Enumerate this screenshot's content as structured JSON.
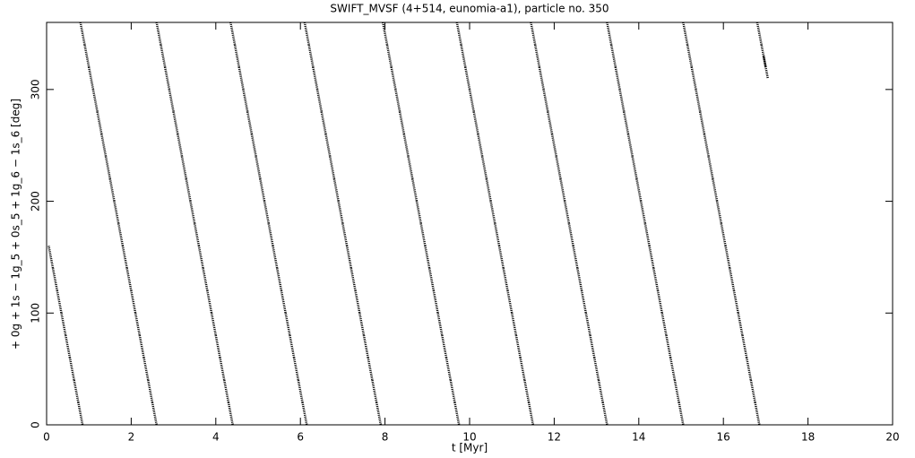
{
  "chart_data": {
    "type": "scatter",
    "title": "SWIFT_MVSF (4+514, eunomia-a1), particle no. 350",
    "x_label": "t [Myr]",
    "y_label": "+ 0g + 1s − 1g_5 + 0s_5 + 1g_6 − 1s_6 [deg]",
    "color": "#000000",
    "xlim": [
      0,
      20
    ],
    "xticks": [
      0,
      2,
      4,
      6,
      8,
      10,
      12,
      14,
      16,
      18,
      20
    ],
    "ylim": [
      0,
      360
    ],
    "yticks": [
      0,
      100,
      200,
      300
    ],
    "x": [
      0.1,
      0.2,
      0.3,
      0.4,
      0.5,
      0.6,
      0.7,
      0.8,
      0.85,
      0.95,
      1.05,
      1.15,
      1.25,
      1.35,
      1.45,
      1.55,
      1.65,
      1.75,
      1.85,
      1.95,
      2.05,
      2.15,
      2.25,
      2.35,
      2.45,
      2.55,
      2.65,
      2.75,
      2.85,
      2.95,
      3.05,
      3.15,
      3.25,
      3.35,
      3.45,
      3.55,
      3.65,
      3.75,
      3.85,
      3.95,
      4.05,
      4.15,
      4.25,
      4.35,
      4.4,
      4.5,
      4.6,
      4.7,
      4.8,
      4.9,
      5.0,
      5.1,
      5.2,
      5.3,
      5.4,
      5.5,
      5.6,
      5.7,
      5.8,
      5.9,
      6.0,
      6.1,
      6.15,
      6.25,
      6.35,
      6.45,
      6.55,
      6.65,
      6.75,
      6.85,
      6.95,
      7.05,
      7.15,
      7.25,
      7.35,
      7.45,
      7.55,
      7.65,
      7.75,
      7.85,
      8.0,
      8.1,
      8.2,
      8.3,
      8.4,
      8.5,
      8.6,
      8.7,
      8.8,
      8.9,
      9.0,
      9.1,
      9.2,
      9.3,
      9.4,
      9.5,
      9.6,
      9.7,
      9.75,
      9.85,
      9.95,
      10.05,
      10.15,
      10.25,
      10.35,
      10.45,
      10.55,
      10.65,
      10.75,
      10.85,
      10.95,
      11.05,
      11.15,
      11.25,
      11.35,
      11.45,
      11.5,
      11.6,
      11.7,
      11.8,
      11.9,
      12.0,
      12.1,
      12.2,
      12.3,
      12.4,
      12.5,
      12.6,
      12.7,
      12.8,
      12.9,
      13.0,
      13.1,
      13.2,
      13.3,
      13.4,
      13.5,
      13.6,
      13.7,
      13.8,
      13.9,
      14.0,
      14.1,
      14.2,
      14.3,
      14.4,
      14.5,
      14.6,
      14.7,
      14.8,
      14.9,
      15.0,
      15.1,
      15.2,
      15.3,
      15.4,
      15.5,
      15.6,
      15.7,
      15.8,
      15.9,
      16.0,
      16.1,
      16.2,
      16.3,
      16.4,
      16.5,
      16.6,
      16.7,
      16.8,
      16.85,
      16.95,
      17.0
    ],
    "values": [
      150,
      130,
      110,
      90,
      70,
      50,
      30,
      10,
      350,
      330,
      310,
      290,
      270,
      250,
      230,
      210,
      190,
      170,
      150,
      130,
      110,
      90,
      70,
      50,
      30,
      10,
      350,
      330,
      310,
      290,
      270,
      250,
      230,
      210,
      190,
      170,
      150,
      130,
      110,
      90,
      70,
      50,
      30,
      10,
      350,
      330,
      310,
      290,
      270,
      250,
      230,
      210,
      190,
      170,
      150,
      130,
      110,
      90,
      70,
      50,
      30,
      10,
      350,
      330,
      310,
      290,
      270,
      250,
      230,
      210,
      190,
      170,
      150,
      130,
      110,
      90,
      70,
      50,
      30,
      10,
      350,
      330,
      310,
      290,
      270,
      250,
      230,
      210,
      190,
      170,
      150,
      130,
      110,
      90,
      70,
      50,
      30,
      10,
      350,
      330,
      310,
      290,
      270,
      250,
      230,
      210,
      190,
      170,
      150,
      130,
      110,
      90,
      70,
      50,
      30,
      10,
      350,
      330,
      310,
      290,
      270,
      250,
      230,
      210,
      190,
      170,
      150,
      130,
      110,
      90,
      70,
      50,
      30,
      10,
      350,
      330,
      310,
      290,
      270,
      250,
      230,
      210,
      190,
      170,
      150,
      130,
      110,
      90,
      70,
      50,
      30,
      10,
      350,
      330,
      310,
      290,
      270,
      250,
      230,
      210,
      190,
      170,
      150,
      130,
      110,
      90,
      70,
      50,
      30,
      10,
      350,
      330,
      320
    ]
  }
}
